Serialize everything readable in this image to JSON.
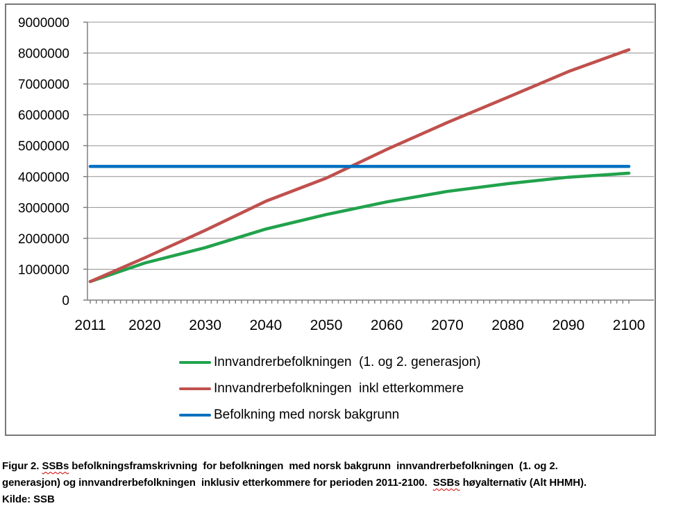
{
  "figure": {
    "caption": {
      "line1_pre": "Figur 2. ",
      "line1_misspelled": "SSBs",
      "line1_rest": " befolkningsframskrivning  for befolkningen  med norsk bakgrunn  innvandrerbefolkningen  (1. og 2.",
      "line2_pre": "generasjon) og innvandrerbefolkningen  inklusiv etterkommere for perioden 2011-2100.  ",
      "line2_misspelled": "SSBs",
      "line2_rest": " høyalternativ (Alt HHMH).",
      "source_line": "Kilde: SSB"
    }
  },
  "chart_data": {
    "type": "line",
    "title": "",
    "xlabel": "",
    "ylabel": "",
    "x_min": 2011,
    "x_max": 2100,
    "y_min": 0,
    "y_max": 9000000,
    "y_tick_step": 1000000,
    "y_ticks": [
      0,
      1000000,
      2000000,
      3000000,
      4000000,
      5000000,
      6000000,
      7000000,
      8000000,
      9000000
    ],
    "x_tick_labels": [
      2011,
      2020,
      2030,
      2040,
      2050,
      2060,
      2070,
      2080,
      2090,
      2100
    ],
    "grid": "horizontal",
    "legend_position": "bottom",
    "axis_color": "#7f7f7f",
    "gridline_color": "#909090",
    "series": [
      {
        "id": "innvandrerbefolkningen-1-2-generasjon",
        "name": "Innvandrerbefolkningen  (1. og 2. generasjon)",
        "color": "#21A24C",
        "points": [
          [
            2011,
            600000
          ],
          [
            2020,
            1200000
          ],
          [
            2030,
            1700000
          ],
          [
            2040,
            2300000
          ],
          [
            2050,
            2770000
          ],
          [
            2060,
            3180000
          ],
          [
            2070,
            3520000
          ],
          [
            2080,
            3770000
          ],
          [
            2090,
            3980000
          ],
          [
            2100,
            4110000
          ]
        ]
      },
      {
        "id": "innvandrerbefolkningen-inkl-etterkommere",
        "name": "Innvandrerbefolkningen  inkl etterkommere",
        "color": "#C0504D",
        "points": [
          [
            2011,
            600000
          ],
          [
            2020,
            1370000
          ],
          [
            2030,
            2260000
          ],
          [
            2040,
            3200000
          ],
          [
            2050,
            3950000
          ],
          [
            2060,
            4880000
          ],
          [
            2070,
            5750000
          ],
          [
            2080,
            6570000
          ],
          [
            2090,
            7400000
          ],
          [
            2100,
            8110000
          ]
        ]
      },
      {
        "id": "befolkning-med-norsk-bakgrunn",
        "name": "Befolkning med norsk bakgrunn",
        "color": "#0070C0",
        "points": [
          [
            2011,
            4330000
          ],
          [
            2100,
            4330000
          ]
        ]
      }
    ]
  }
}
